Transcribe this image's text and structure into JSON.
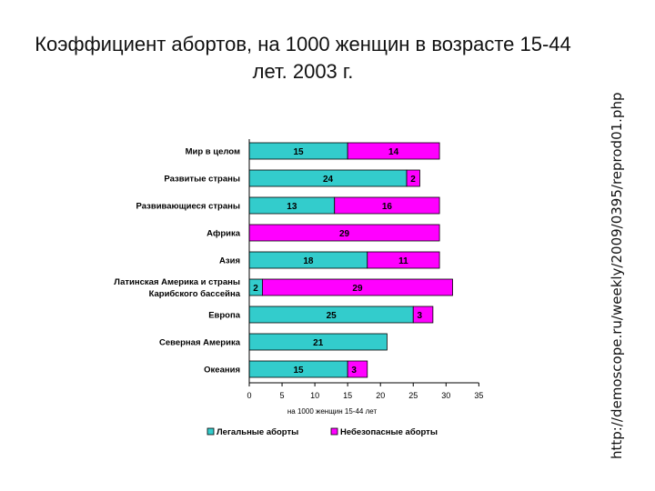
{
  "title": "Коэффициент абортов, на 1000 женщин в возрасте 15-44 лет. 2003 г.",
  "side_text": "http://demoscope.ru/weekly/2009/0395/reprod01.php",
  "colors": {
    "legal": "#33cccc",
    "unsafe": "#ff00ff"
  },
  "chart_data": {
    "type": "bar",
    "orientation": "horizontal",
    "stacked": true,
    "categories": [
      "Мир в целом",
      "Развитые страны",
      "Развивающиеся страны",
      "Африка",
      "Азия",
      "Латинская Америка и страны Карибского бассейна",
      "Европа",
      "Северная Америка",
      "Океания"
    ],
    "series": [
      {
        "name": "Легальные аборты",
        "color": "#33cccc",
        "values": [
          15,
          24,
          13,
          0,
          18,
          2,
          25,
          21,
          15
        ]
      },
      {
        "name": "Небезопасные аборты",
        "color": "#ff00ff",
        "values": [
          14,
          2,
          16,
          29,
          11,
          29,
          3,
          0,
          3
        ]
      }
    ],
    "xlabel": "на 1000 женщин 15-44 лет",
    "xlim": [
      0,
      35
    ],
    "xticks": [
      0,
      5,
      10,
      15,
      20,
      25,
      30,
      35
    ],
    "grid": false,
    "legend_position": "bottom"
  }
}
